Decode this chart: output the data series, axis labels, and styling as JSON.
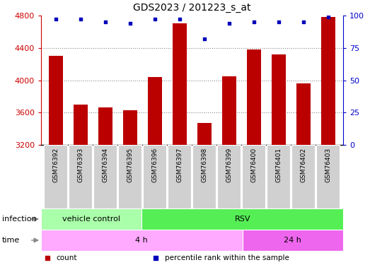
{
  "title": "GDS2023 / 201223_s_at",
  "samples": [
    "GSM76392",
    "GSM76393",
    "GSM76394",
    "GSM76395",
    "GSM76396",
    "GSM76397",
    "GSM76398",
    "GSM76399",
    "GSM76400",
    "GSM76401",
    "GSM76402",
    "GSM76403"
  ],
  "counts": [
    4300,
    3700,
    3660,
    3625,
    4040,
    4700,
    3470,
    4050,
    4380,
    4320,
    3960,
    4780
  ],
  "percentile_ranks": [
    97,
    97,
    95,
    94,
    97,
    97,
    82,
    94,
    95,
    95,
    95,
    99
  ],
  "ylim_left": [
    3200,
    4800
  ],
  "ylim_right": [
    0,
    100
  ],
  "yticks_left": [
    3200,
    3600,
    4000,
    4400,
    4800
  ],
  "yticks_right": [
    0,
    25,
    50,
    75,
    100
  ],
  "bar_color": "#bb0000",
  "dot_color": "#0000bb",
  "bar_width": 0.55,
  "infection_groups": [
    {
      "label": "vehicle control",
      "start": 0,
      "end": 4,
      "color": "#aaffaa"
    },
    {
      "label": "RSV",
      "start": 4,
      "end": 12,
      "color": "#55ee55"
    }
  ],
  "time_groups": [
    {
      "label": "4 h",
      "start": 0,
      "end": 8,
      "color": "#ffaaff"
    },
    {
      "label": "24 h",
      "start": 8,
      "end": 12,
      "color": "#ee66ee"
    }
  ],
  "legend_items": [
    {
      "label": "count",
      "color": "#bb0000"
    },
    {
      "label": "percentile rank within the sample",
      "color": "#0000bb"
    }
  ],
  "axis_color_left": "#cc0000",
  "axis_color_right": "#0000cc",
  "grid_color": "#888888",
  "bg_color": "#ffffff",
  "label_bg_color": "#d0d0d0"
}
